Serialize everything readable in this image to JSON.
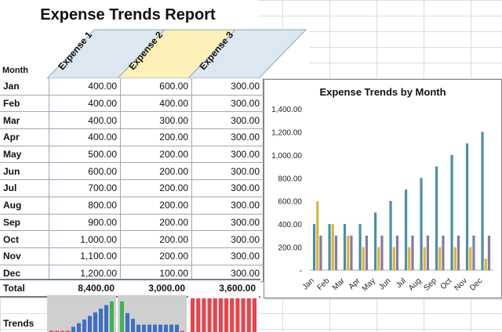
{
  "title": "Expense Trends Report",
  "headers": {
    "month": "Month",
    "expenses": [
      "Expense 1",
      "Expense 2",
      "Expense 3"
    ]
  },
  "rows": [
    {
      "month": "Jan",
      "e1": "400.00",
      "e2": "600.00",
      "e3": "300.00"
    },
    {
      "month": "Feb",
      "e1": "400.00",
      "e2": "400.00",
      "e3": "300.00"
    },
    {
      "month": "Mar",
      "e1": "400.00",
      "e2": "300.00",
      "e3": "300.00"
    },
    {
      "month": "Apr",
      "e1": "400.00",
      "e2": "200.00",
      "e3": "300.00"
    },
    {
      "month": "May",
      "e1": "500.00",
      "e2": "200.00",
      "e3": "300.00"
    },
    {
      "month": "Jun",
      "e1": "600.00",
      "e2": "200.00",
      "e3": "300.00"
    },
    {
      "month": "Jul",
      "e1": "700.00",
      "e2": "200.00",
      "e3": "300.00"
    },
    {
      "month": "Aug",
      "e1": "800.00",
      "e2": "200.00",
      "e3": "300.00"
    },
    {
      "month": "Sep",
      "e1": "900.00",
      "e2": "200.00",
      "e3": "300.00"
    },
    {
      "month": "Oct",
      "e1": "1,000.00",
      "e2": "200.00",
      "e3": "300.00"
    },
    {
      "month": "Nov",
      "e1": "1,100.00",
      "e2": "200.00",
      "e3": "300.00"
    },
    {
      "month": "Dec",
      "e1": "1,200.00",
      "e2": "100.00",
      "e3": "300.00"
    }
  ],
  "totals": {
    "label": "Total",
    "e1": "8,400.00",
    "e2": "3,000.00",
    "e3": "3,600.00"
  },
  "trends_label": "Trends",
  "colors": {
    "expense1": "#4a90a4",
    "expense2": "#d9b830",
    "expense3": "#8878a8",
    "header1": "#dde7f0",
    "header2": "#fdf0b8",
    "header3": "#dde7f0",
    "spark_bg": "#cfcfcf",
    "spark_blue": "#3f6fc4",
    "spark_green": "#3fb34f",
    "spark_red": "#e8444c"
  },
  "chart_data": {
    "type": "bar",
    "title": "Expense Trends by Month",
    "categories": [
      "Jan",
      "Feb",
      "Mar",
      "Apr",
      "May",
      "Jun",
      "Jul",
      "Aug",
      "Sep",
      "Oct",
      "Nov",
      "Dec"
    ],
    "series": [
      {
        "values": [
          400,
          400,
          400,
          400,
          500,
          600,
          700,
          800,
          900,
          1000,
          1100,
          1200
        ]
      },
      {
        "values": [
          600,
          400,
          300,
          200,
          200,
          200,
          200,
          200,
          200,
          200,
          200,
          100
        ]
      },
      {
        "values": [
          300,
          300,
          300,
          300,
          300,
          300,
          300,
          300,
          300,
          300,
          300,
          300
        ]
      }
    ],
    "ylim": [
      0,
      1400
    ],
    "yticks": [
      {
        "value": 0,
        "label": "-"
      },
      {
        "value": 200,
        "label": "200.00"
      },
      {
        "value": 400,
        "label": "400.00"
      },
      {
        "value": 600,
        "label": "600.00"
      },
      {
        "value": 800,
        "label": "800.00"
      },
      {
        "value": 1000,
        "label": "1,000.00"
      },
      {
        "value": 1200,
        "label": "1,200.00"
      },
      {
        "value": 1400,
        "label": "1,400.00"
      }
    ],
    "legend": "none",
    "grid": false
  }
}
